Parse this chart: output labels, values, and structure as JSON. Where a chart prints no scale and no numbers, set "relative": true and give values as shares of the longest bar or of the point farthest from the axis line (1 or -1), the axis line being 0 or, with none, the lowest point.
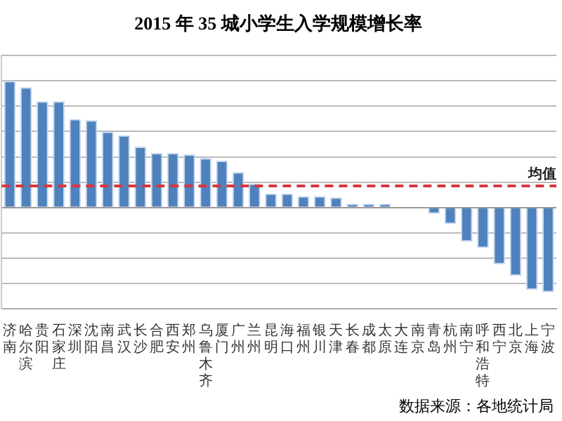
{
  "chart_data": {
    "type": "bar",
    "title": "2015 年 35 城小学生入学规模增长率",
    "categories": [
      "济南",
      "哈尔滨",
      "贵阳",
      "石家庄",
      "深圳",
      "沈阳",
      "南昌",
      "武汉",
      "长沙",
      "合肥",
      "西安",
      "郑州",
      "乌鲁木齐",
      "厦门",
      "广州",
      "兰州",
      "昆明",
      "海口",
      "福州",
      "银川",
      "天津",
      "长春",
      "成都",
      "太原",
      "大连",
      "南京",
      "青岛",
      "杭州",
      "南宁",
      "呼和浩特",
      "西宁",
      "北京",
      "上海",
      "宁波"
    ],
    "values": [
      1,
      0.95,
      0.84,
      0.84,
      0.7,
      0.69,
      0.6,
      0.57,
      0.48,
      0.43,
      0.43,
      0.42,
      0.39,
      0.37,
      0.28,
      0.19,
      0.11,
      0.11,
      0.09,
      0.09,
      0.08,
      0.03,
      0.03,
      0.03,
      0,
      0,
      -0.05,
      -0.13,
      -0.27,
      -0.32,
      -0.45,
      -0.54,
      -0.65,
      -0.67
    ],
    "color": "#4f81bd",
    "relative": true,
    "grid": "y",
    "ref_lines": [
      {
        "axis": "y",
        "value": 0.17,
        "label": "均值",
        "color": "#d9363e",
        "line_style": "dashed"
      }
    ],
    "annotations": [
      "数据来源：各地统计局"
    ]
  }
}
